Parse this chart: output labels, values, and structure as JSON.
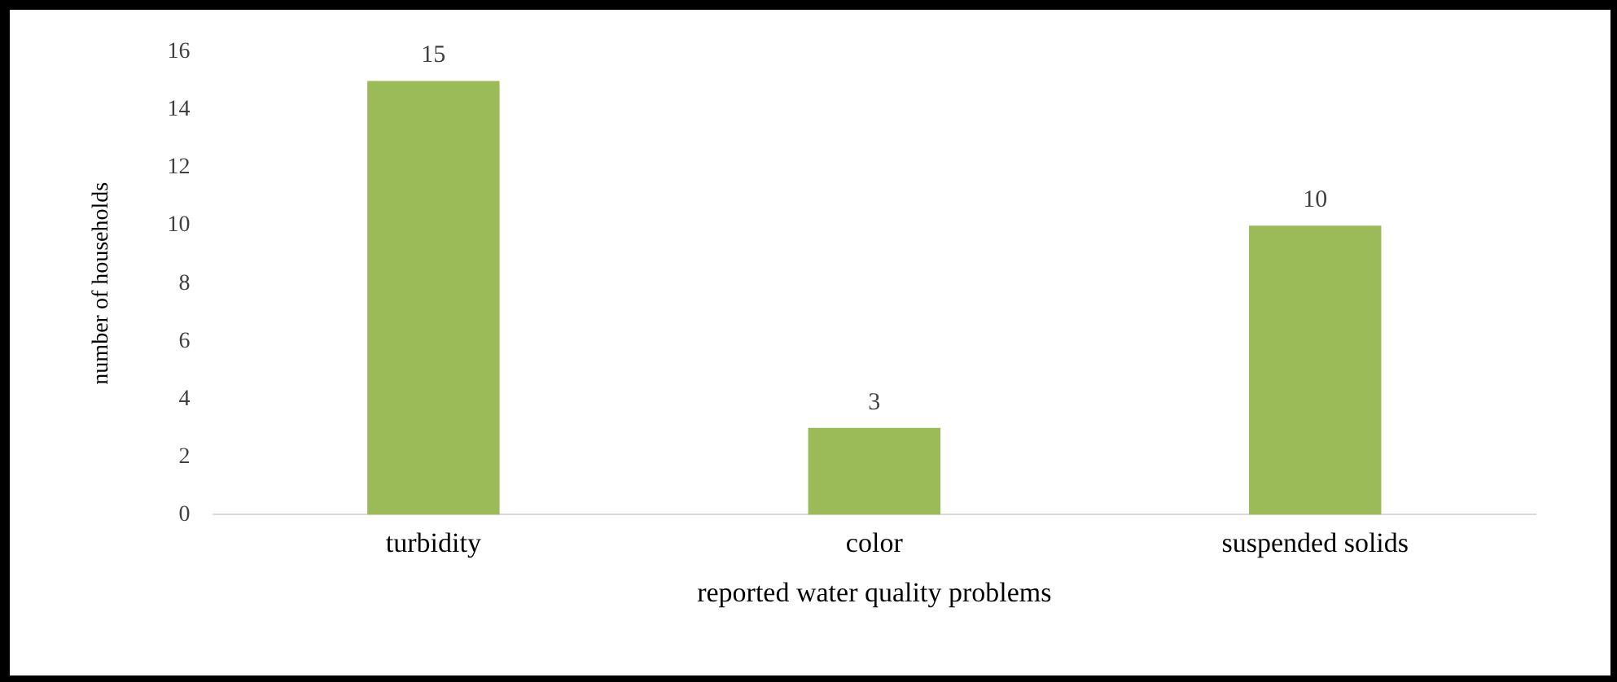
{
  "chart_data": {
    "type": "bar",
    "xlabel": "reported water quality problems",
    "ylabel": "number of households",
    "categories": [
      "turbidity",
      "color",
      "suspended solids"
    ],
    "values": [
      15,
      3,
      10
    ],
    "color": "#9bbb59",
    "ylim": [
      0,
      16
    ],
    "yticks": [
      0,
      2,
      4,
      6,
      8,
      10,
      12,
      14,
      16
    ],
    "grid": false,
    "legend": false,
    "data_labels": true
  }
}
